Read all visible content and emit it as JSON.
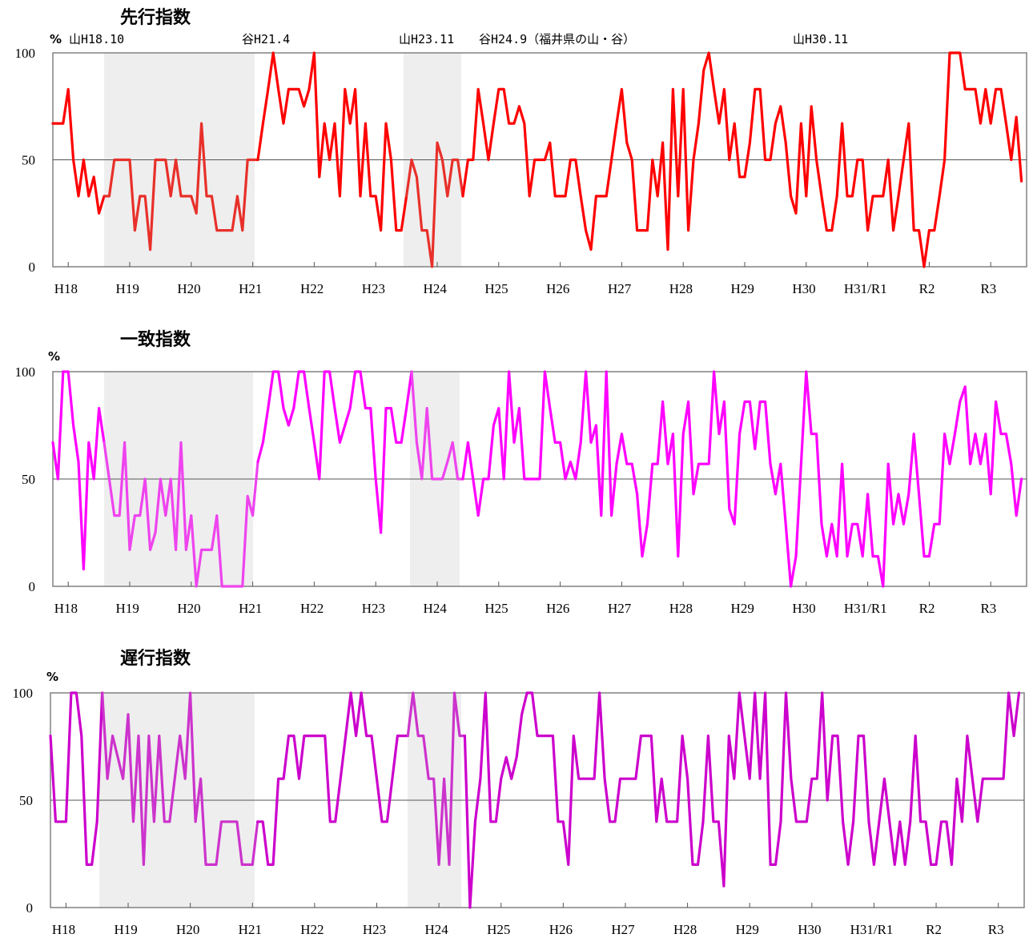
{
  "chart_data": [
    {
      "type": "line",
      "title": "先行指数",
      "unit": "%",
      "annotations": [
        "山H18.10",
        "谷H21.4",
        "山H23.11",
        "谷H24.9（福井県の山・谷）",
        "山H30.11"
      ],
      "x_tick_labels": [
        "H18",
        "H19",
        "H20",
        "H21",
        "H22",
        "H23",
        "H24",
        "H25",
        "H26",
        "H27",
        "H28",
        "H29",
        "H30",
        "H31/R1",
        "R2",
        "R3"
      ],
      "y_tick_labels": [
        "0",
        "50",
        "100"
      ],
      "ylim": [
        0,
        100
      ],
      "grid": "horizontal at 50",
      "recession_shading": [
        [
          "H18.10",
          "H21.4"
        ],
        [
          "H23.11",
          "H24.9"
        ]
      ],
      "color": "#ff0000",
      "shaded_color": "#e8302a",
      "series": [
        {
          "values": [
            67,
            67,
            67,
            83,
            50,
            33,
            50,
            33,
            42,
            25,
            33,
            33,
            50,
            50,
            50,
            50,
            17,
            33,
            33,
            8,
            50,
            50,
            50,
            33,
            50,
            33,
            33,
            33,
            25,
            67,
            33,
            33,
            17,
            17,
            17,
            17,
            33,
            17,
            50,
            50,
            50,
            67,
            83,
            100,
            83,
            67,
            83,
            83,
            83,
            75,
            83,
            100,
            42,
            67,
            50,
            67,
            33,
            83,
            67,
            83,
            33,
            67,
            33,
            33,
            17,
            67,
            50,
            17,
            17,
            33,
            50,
            42,
            17,
            17,
            0,
            58,
            50,
            33,
            50,
            50,
            33,
            50,
            50,
            83,
            67,
            50,
            67,
            83,
            83,
            67,
            67,
            75,
            67,
            33,
            50,
            50,
            50,
            58,
            33,
            33,
            33,
            50,
            50,
            33,
            17,
            8,
            33,
            33,
            33,
            50,
            67,
            83,
            58,
            50,
            17,
            17,
            17,
            50,
            33,
            58,
            8,
            83,
            33,
            83,
            17,
            50,
            67,
            92,
            100,
            83,
            67,
            83,
            50,
            67,
            42,
            42,
            58,
            83,
            83,
            50,
            50,
            67,
            75,
            58,
            33,
            25,
            67,
            33,
            75,
            50,
            33,
            17,
            17,
            33,
            67,
            33,
            33,
            50,
            50,
            17,
            33,
            33,
            33,
            50,
            17,
            33,
            50,
            67,
            17,
            17,
            0,
            17,
            17,
            33,
            50,
            100,
            100,
            100,
            83,
            83,
            83,
            67,
            83,
            67,
            83,
            83,
            67,
            50,
            70,
            40
          ]
        }
      ]
    },
    {
      "type": "line",
      "title": "一致指数",
      "unit": "%",
      "x_tick_labels": [
        "H18",
        "H19",
        "H20",
        "H21",
        "H22",
        "H23",
        "H24",
        "H25",
        "H26",
        "H27",
        "H28",
        "H29",
        "H30",
        "H31/R1",
        "R2",
        "R3"
      ],
      "y_tick_labels": [
        "0",
        "50",
        "100"
      ],
      "ylim": [
        0,
        100
      ],
      "grid": "horizontal at 50",
      "recession_shading": [
        [
          "H18.10",
          "H21.4"
        ],
        [
          "H23.11",
          "H24.9"
        ]
      ],
      "color": "#ff00ff",
      "shaded_color": "#ee44ee",
      "series": [
        {
          "values": [
            67,
            50,
            100,
            100,
            75,
            58,
            8,
            67,
            50,
            83,
            67,
            50,
            33,
            33,
            67,
            17,
            33,
            33,
            50,
            17,
            25,
            50,
            33,
            50,
            17,
            67,
            17,
            33,
            0,
            17,
            17,
            17,
            33,
            0,
            0,
            0,
            0,
            0,
            42,
            33,
            58,
            67,
            83,
            100,
            100,
            83,
            75,
            83,
            100,
            100,
            83,
            67,
            50,
            100,
            100,
            83,
            67,
            75,
            83,
            100,
            100,
            83,
            83,
            50,
            25,
            83,
            83,
            67,
            67,
            83,
            100,
            67,
            50,
            83,
            50,
            50,
            50,
            58,
            67,
            50,
            50,
            67,
            50,
            33,
            50,
            50,
            75,
            83,
            50,
            100,
            67,
            83,
            50,
            50,
            50,
            50,
            100,
            83,
            67,
            67,
            50,
            58,
            50,
            67,
            100,
            67,
            75,
            33,
            100,
            33,
            57,
            71,
            57,
            57,
            43,
            14,
            29,
            57,
            57,
            86,
            57,
            71,
            14,
            71,
            86,
            43,
            57,
            57,
            57,
            100,
            71,
            86,
            36,
            29,
            71,
            86,
            86,
            64,
            86,
            86,
            57,
            43,
            57,
            29,
            0,
            14,
            57,
            100,
            71,
            71,
            29,
            14,
            29,
            14,
            57,
            14,
            29,
            29,
            14,
            43,
            14,
            14,
            0,
            57,
            29,
            43,
            29,
            43,
            71,
            43,
            14,
            14,
            29,
            29,
            71,
            57,
            71,
            86,
            93,
            57,
            71,
            57,
            71,
            43,
            86,
            71,
            71,
            57,
            33,
            50
          ]
        }
      ]
    },
    {
      "type": "line",
      "title": "遅行指数",
      "unit": "%",
      "x_tick_labels": [
        "H18",
        "H19",
        "H20",
        "H21",
        "H22",
        "H23",
        "H24",
        "H25",
        "H26",
        "H27",
        "H28",
        "H29",
        "H30",
        "H31/R1",
        "R2",
        "R3"
      ],
      "y_tick_labels": [
        "0",
        "50",
        "100"
      ],
      "ylim": [
        0,
        100
      ],
      "grid": "horizontal at 50",
      "recession_shading": [
        [
          "H18.10",
          "H21.4"
        ],
        [
          "H23.11",
          "H24.9"
        ]
      ],
      "color": "#cc00cc",
      "shaded_color": "#cc33cc",
      "series": [
        {
          "values": [
            80,
            40,
            40,
            40,
            100,
            100,
            80,
            20,
            20,
            40,
            100,
            60,
            80,
            70,
            60,
            90,
            40,
            80,
            20,
            80,
            40,
            80,
            40,
            40,
            60,
            80,
            60,
            100,
            40,
            60,
            20,
            20,
            20,
            40,
            40,
            40,
            40,
            20,
            20,
            20,
            40,
            40,
            20,
            20,
            60,
            60,
            80,
            80,
            60,
            80,
            80,
            80,
            80,
            80,
            40,
            40,
            60,
            80,
            100,
            80,
            100,
            80,
            80,
            60,
            40,
            40,
            60,
            80,
            80,
            80,
            100,
            80,
            80,
            60,
            60,
            20,
            60,
            20,
            100,
            80,
            80,
            0,
            40,
            60,
            100,
            40,
            40,
            60,
            70,
            60,
            70,
            90,
            100,
            100,
            80,
            80,
            80,
            80,
            40,
            40,
            20,
            80,
            60,
            60,
            60,
            60,
            100,
            60,
            40,
            40,
            60,
            60,
            60,
            60,
            80,
            80,
            80,
            40,
            60,
            40,
            40,
            40,
            80,
            60,
            20,
            20,
            40,
            80,
            40,
            40,
            10,
            80,
            60,
            100,
            80,
            60,
            100,
            60,
            100,
            20,
            20,
            40,
            100,
            60,
            40,
            40,
            40,
            60,
            60,
            100,
            50,
            80,
            80,
            40,
            20,
            40,
            80,
            80,
            40,
            20,
            40,
            60,
            40,
            20,
            40,
            20,
            40,
            80,
            40,
            40,
            20,
            20,
            40,
            40,
            20,
            60,
            40,
            80,
            60,
            40,
            60,
            60,
            60,
            60,
            60,
            100,
            80,
            100
          ]
        }
      ]
    }
  ]
}
